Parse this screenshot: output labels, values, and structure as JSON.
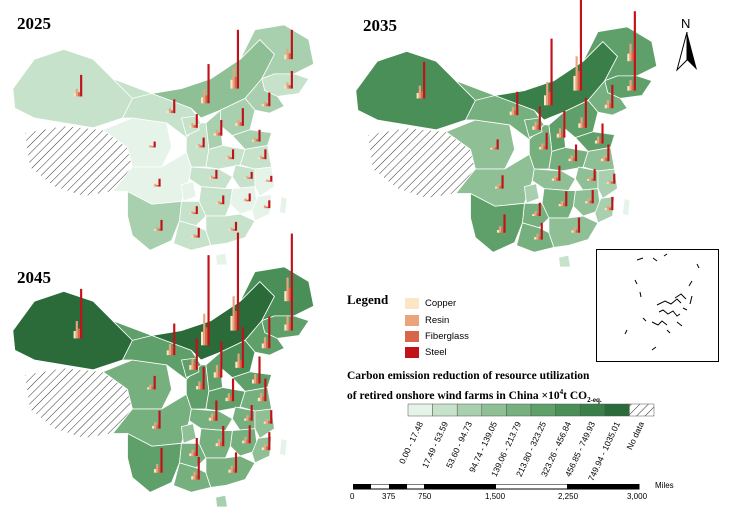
{
  "maps": [
    {
      "year": "2025"
    },
    {
      "year": "2035"
    },
    {
      "year": "2045"
    }
  ],
  "legend": {
    "title": "Legend",
    "materials": [
      {
        "label": "Copper",
        "color": "#fde6c8"
      },
      {
        "label": "Resin",
        "color": "#e9a47c"
      },
      {
        "label": "Fiberglass",
        "color": "#d9654a"
      },
      {
        "label": "Steel",
        "color": "#c1121a"
      }
    ]
  },
  "ramp": {
    "title_line1": "Carbon emission reduction of resource utilization",
    "title_line2_prefix": "of retired onshore wind farms in China ×10",
    "title_sup": "4",
    "title_unit": "t CO",
    "title_sub": "2-eq.",
    "classes": [
      {
        "label": "0.00 - 17.48",
        "color": "#e6f3e8"
      },
      {
        "label": "17.49 - 53.59",
        "color": "#c6e2ca"
      },
      {
        "label": "53.60 - 94.73",
        "color": "#a8d0ae"
      },
      {
        "label": "94.74 - 139.05",
        "color": "#8ebf95"
      },
      {
        "label": "139.06 - 213.79",
        "color": "#77b07f"
      },
      {
        "label": "213.80 - 323.25",
        "color": "#5f9f6a"
      },
      {
        "label": "323.26 - 456.84",
        "color": "#4b8f58"
      },
      {
        "label": "456.85 - 749.93",
        "color": "#3a7f49"
      },
      {
        "label": "749.94 - 1035.01",
        "color": "#2b6b3a"
      },
      {
        "label": "No data",
        "color": "hatch"
      }
    ]
  },
  "scale_bar": {
    "unit": "Miles",
    "ticks": [
      "0",
      "375",
      "750",
      "1,500",
      "2,250",
      "3,000"
    ]
  },
  "north_arrow": {
    "label": "N"
  }
}
